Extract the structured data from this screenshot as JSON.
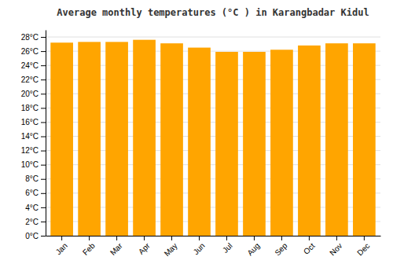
{
  "chart_data": {
    "type": "bar",
    "title": "Average monthly temperatures (°C ) in Karangbadar Kidul",
    "categories": [
      "Jan",
      "Feb",
      "Mar",
      "Apr",
      "May",
      "Jun",
      "Jul",
      "Aug",
      "Sep",
      "Oct",
      "Nov",
      "Dec"
    ],
    "values": [
      27.2,
      27.3,
      27.3,
      27.6,
      27.1,
      26.5,
      25.9,
      25.9,
      26.2,
      26.8,
      27.1,
      27.1
    ],
    "color": "#FFA500",
    "ylim": [
      0,
      29
    ],
    "yticks": [
      {
        "value": 0,
        "label": "0°C"
      },
      {
        "value": 2,
        "label": "2°C"
      },
      {
        "value": 4,
        "label": "4°C"
      },
      {
        "value": 6,
        "label": "6°C"
      },
      {
        "value": 8,
        "label": "8°C"
      },
      {
        "value": 10,
        "label": "10°C"
      },
      {
        "value": 12,
        "label": "12°C"
      },
      {
        "value": 14,
        "label": "14°C"
      },
      {
        "value": 16,
        "label": "16°C"
      },
      {
        "value": 18,
        "label": "18°C"
      },
      {
        "value": 20,
        "label": "20°C"
      },
      {
        "value": 22,
        "label": "22°C"
      },
      {
        "value": 24,
        "label": "24°C"
      },
      {
        "value": 26,
        "label": "26°C"
      },
      {
        "value": 28,
        "label": "28°C"
      }
    ],
    "grid": true
  }
}
